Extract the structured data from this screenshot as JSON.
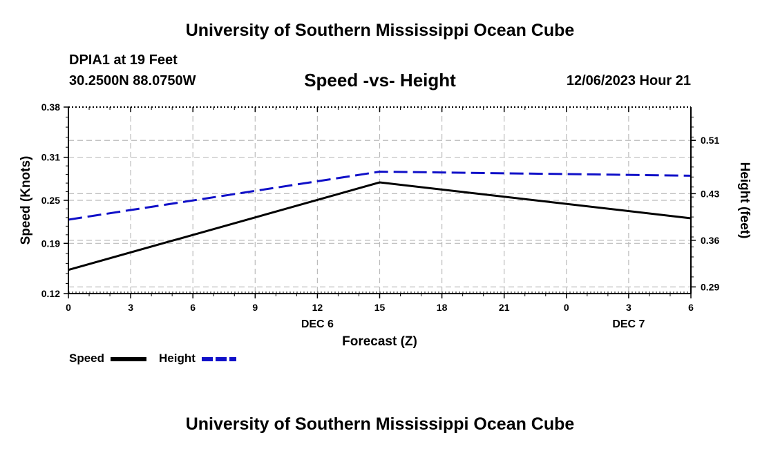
{
  "header": {
    "title": "University of Southern Mississippi Ocean Cube",
    "station": "DPIA1 at 19 Feet",
    "coords": "30.2500N  88.0750W",
    "chart_title": "Speed -vs- Height",
    "date": "12/06/2023 Hour 21"
  },
  "footer": {
    "title": "University of Southern Mississippi Ocean Cube"
  },
  "legend": {
    "speed_label": "Speed",
    "height_label": "Height"
  },
  "colors": {
    "speed": "#000000",
    "height": "#1010c8",
    "grid": "#bbbbbb"
  },
  "chart_data": {
    "type": "line",
    "title": "Speed -vs- Height",
    "xlabel": "Forecast (Z)",
    "ylabel": "Speed (Knots)",
    "y2label": "Height (feet)",
    "x_tick_labels": [
      "0",
      "3",
      "6",
      "9",
      "12",
      "15",
      "18",
      "21",
      "0",
      "3",
      "6"
    ],
    "x_date_labels": [
      {
        "index": 4,
        "label": "DEC 6"
      },
      {
        "index": 9,
        "label": "DEC 7"
      }
    ],
    "x_range": [
      0,
      30
    ],
    "y_ticks": [
      "0.12",
      "0.19",
      "0.25",
      "0.31",
      "0.38"
    ],
    "y_range": [
      0.12,
      0.38
    ],
    "y2_ticks": [
      "0.29",
      "0.36",
      "0.43",
      "0.51"
    ],
    "y2_range": [
      0.28,
      0.56
    ],
    "grid": true,
    "legend_position": "bottom-left",
    "series": [
      {
        "name": "Speed",
        "axis": "left",
        "style": "solid",
        "x": [
          0,
          15,
          30
        ],
        "y": [
          0.153,
          0.275,
          0.225
        ]
      },
      {
        "name": "Height",
        "axis": "right",
        "style": "dashed",
        "x": [
          0,
          15,
          30
        ],
        "y": [
          0.391,
          0.463,
          0.457
        ]
      }
    ]
  }
}
